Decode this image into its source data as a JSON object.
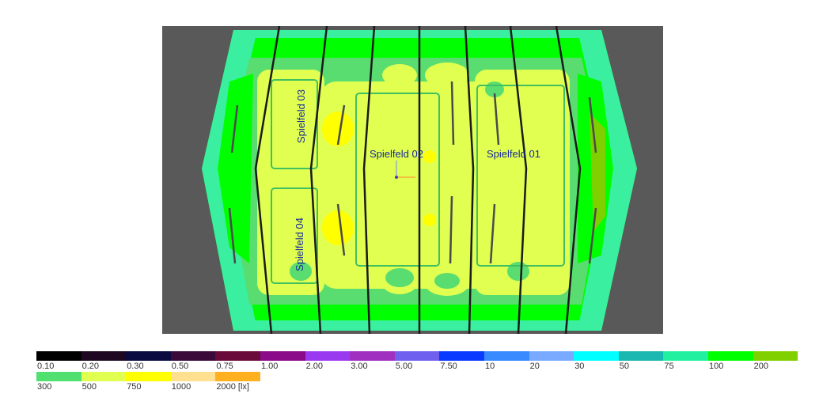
{
  "fields": {
    "f01": "Spielfeld 01",
    "f02": "Spielfeld 02",
    "f03": "Spielfeld 03",
    "f04": "Spielfeld 04"
  },
  "legend": {
    "row1": [
      {
        "label": "0.10",
        "color": "#000000"
      },
      {
        "label": "0.20",
        "color": "#1e0720"
      },
      {
        "label": "0.30",
        "color": "#0a0a40"
      },
      {
        "label": "0.50",
        "color": "#3a0a3a"
      },
      {
        "label": "0.75",
        "color": "#6a0a3a"
      },
      {
        "label": "1.00",
        "color": "#8a0a8a"
      },
      {
        "label": "2.00",
        "color": "#9a3af0"
      },
      {
        "label": "3.00",
        "color": "#a030c0"
      },
      {
        "label": "5.00",
        "color": "#7060f0"
      },
      {
        "label": "7.50",
        "color": "#0a3aff"
      },
      {
        "label": "10",
        "color": "#3a8aff"
      },
      {
        "label": "20",
        "color": "#7aaaff"
      },
      {
        "label": "30",
        "color": "#00ffff"
      },
      {
        "label": "50",
        "color": "#1ab8b0"
      },
      {
        "label": "75",
        "color": "#20f0a0"
      },
      {
        "label": "100",
        "color": "#00ff00"
      },
      {
        "label": "200",
        "color": "#80d000"
      }
    ],
    "row2": [
      {
        "label": "300",
        "color": "#50e070"
      },
      {
        "label": "500",
        "color": "#e0ff50"
      },
      {
        "label": "750",
        "color": "#ffff00"
      },
      {
        "label": "1000",
        "color": "#ffe090"
      },
      {
        "label": "2000 [lx]",
        "color": "#ffb020"
      }
    ]
  }
}
